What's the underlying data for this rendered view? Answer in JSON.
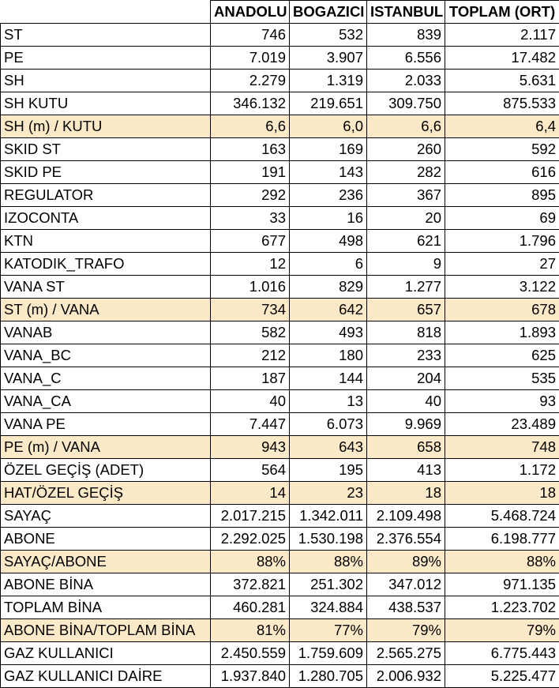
{
  "colors": {
    "highlight_row": "#fce9c8",
    "border": "#000000"
  },
  "table": {
    "headers": [
      "",
      "ANADOLU",
      "BOGAZICI",
      "ISTANBUL",
      "TOPLAM (ORT)"
    ],
    "rows": [
      {
        "label": "ST",
        "values": [
          "746",
          "532",
          "839",
          "2.117"
        ],
        "highlight": false
      },
      {
        "label": "PE",
        "values": [
          "7.019",
          "3.907",
          "6.556",
          "17.482"
        ],
        "highlight": false
      },
      {
        "label": "SH",
        "values": [
          "2.279",
          "1.319",
          "2.033",
          "5.631"
        ],
        "highlight": false
      },
      {
        "label": "SH KUTU",
        "values": [
          "346.132",
          "219.651",
          "309.750",
          "875.533"
        ],
        "highlight": false
      },
      {
        "label": "SH (m) / KUTU",
        "values": [
          "6,6",
          "6,0",
          "6,6",
          "6,4"
        ],
        "highlight": true
      },
      {
        "label": "SKID ST",
        "values": [
          "163",
          "169",
          "260",
          "592"
        ],
        "highlight": false
      },
      {
        "label": "SKID PE",
        "values": [
          "191",
          "143",
          "282",
          "616"
        ],
        "highlight": false
      },
      {
        "label": "REGULATOR",
        "values": [
          "292",
          "236",
          "367",
          "895"
        ],
        "highlight": false
      },
      {
        "label": "IZOCONTA",
        "values": [
          "33",
          "16",
          "20",
          "69"
        ],
        "highlight": false
      },
      {
        "label": "KTN",
        "values": [
          "677",
          "498",
          "621",
          "1.796"
        ],
        "highlight": false
      },
      {
        "label": "KATODIK_TRAFO",
        "values": [
          "12",
          "6",
          "9",
          "27"
        ],
        "highlight": false
      },
      {
        "label": "VANA ST",
        "values": [
          "1.016",
          "829",
          "1.277",
          "3.122"
        ],
        "highlight": false
      },
      {
        "label": "ST (m) / VANA",
        "values": [
          "734",
          "642",
          "657",
          "678"
        ],
        "highlight": true
      },
      {
        "label": "VANAB",
        "values": [
          "582",
          "493",
          "818",
          "1.893"
        ],
        "highlight": false
      },
      {
        "label": "VANA_BC",
        "values": [
          "212",
          "180",
          "233",
          "625"
        ],
        "highlight": false
      },
      {
        "label": "VANA_C",
        "values": [
          "187",
          "144",
          "204",
          "535"
        ],
        "highlight": false
      },
      {
        "label": "VANA_CA",
        "values": [
          "40",
          "13",
          "40",
          "93"
        ],
        "highlight": false
      },
      {
        "label": "VANA PE",
        "values": [
          "7.447",
          "6.073",
          "9.969",
          "23.489"
        ],
        "highlight": false
      },
      {
        "label": "PE (m) / VANA",
        "values": [
          "943",
          "643",
          "658",
          "748"
        ],
        "highlight": true
      },
      {
        "label": "ÖZEL GEÇİŞ (ADET)",
        "values": [
          "564",
          "195",
          "413",
          "1.172"
        ],
        "highlight": false
      },
      {
        "label": "HAT/ÖZEL GEÇİŞ",
        "values": [
          "14",
          "23",
          "18",
          "18"
        ],
        "highlight": true
      },
      {
        "label": "SAYAÇ",
        "values": [
          "2.017.215",
          "1.342.011",
          "2.109.498",
          "5.468.724"
        ],
        "highlight": false
      },
      {
        "label": "ABONE",
        "values": [
          "2.292.025",
          "1.530.198",
          "2.376.554",
          "6.198.777"
        ],
        "highlight": false
      },
      {
        "label": "SAYAÇ/ABONE",
        "values": [
          "88%",
          "88%",
          "89%",
          "88%"
        ],
        "highlight": true
      },
      {
        "label": "ABONE BİNA",
        "values": [
          "372.821",
          "251.302",
          "347.012",
          "971.135"
        ],
        "highlight": false
      },
      {
        "label": "TOPLAM BİNA",
        "values": [
          "460.281",
          "324.884",
          "438.537",
          "1.223.702"
        ],
        "highlight": false
      },
      {
        "label": "ABONE BİNA/TOPLAM BİNA",
        "values": [
          "81%",
          "77%",
          "79%",
          "79%"
        ],
        "highlight": true
      },
      {
        "label": "GAZ KULLANICI",
        "values": [
          "2.450.559",
          "1.759.609",
          "2.565.275",
          "6.775.443"
        ],
        "highlight": false
      },
      {
        "label": "GAZ KULLANICI DAİRE",
        "values": [
          "1.937.840",
          "1.280.705",
          "2.006.932",
          "5.225.477"
        ],
        "highlight": false
      }
    ]
  }
}
